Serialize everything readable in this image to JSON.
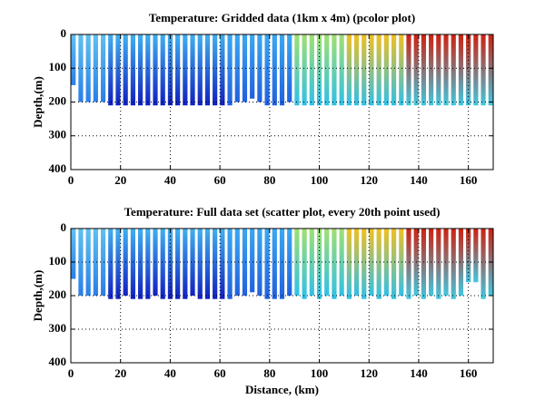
{
  "chart_data": [
    {
      "type": "profile",
      "title": "Temperature: Gridded data (1km x 4m) (pcolor plot)",
      "y_label": "Depth,(m)",
      "xlim": [
        0,
        170
      ],
      "ylim": [
        0,
        400
      ],
      "y_direction": "reverse",
      "grid": true,
      "xticks": [
        0,
        20,
        40,
        60,
        80,
        100,
        120,
        140,
        160
      ],
      "yticks": [
        0,
        100,
        200,
        300,
        400
      ],
      "series": [
        {
          "top_color": "#5ec0f0",
          "bottom_color": "#2a7fe8",
          "x": [
            1,
            4,
            7,
            10,
            13
          ],
          "depths": [
            150,
            200,
            200,
            200,
            200
          ]
        },
        {
          "top_color": "#40b0f0",
          "bottom_color": "#1020c0",
          "x": [
            16,
            19,
            22,
            25,
            28,
            31,
            34,
            37,
            40,
            43,
            46,
            49,
            52,
            55,
            58,
            61
          ],
          "depths": [
            210,
            210,
            210,
            210,
            210,
            210,
            210,
            210,
            210,
            210,
            210,
            210,
            210,
            210,
            210,
            210
          ]
        },
        {
          "top_color": "#3aa8f0",
          "bottom_color": "#2060e0",
          "x": [
            64,
            67,
            70,
            73,
            76,
            79,
            82,
            85,
            88
          ],
          "depths": [
            210,
            200,
            200,
            190,
            200,
            210,
            210,
            210,
            200
          ]
        },
        {
          "top_color": "#a0e070",
          "bottom_color": "#30c0e8",
          "x": [
            91,
            94,
            97,
            100,
            103,
            106,
            109
          ],
          "depths": [
            210,
            210,
            210,
            210,
            210,
            210,
            210
          ]
        },
        {
          "top_color": "#f0c020",
          "bottom_color": "#30c0e8",
          "x": [
            112,
            115,
            118,
            121,
            124,
            127,
            130,
            133
          ],
          "depths": [
            210,
            210,
            210,
            210,
            210,
            210,
            210,
            210
          ]
        },
        {
          "top_color": "#d02010",
          "bottom_color": "#40c8e0",
          "x": [
            136,
            139,
            142,
            145,
            148,
            151,
            154,
            157,
            160,
            163,
            166,
            169
          ],
          "depths": [
            210,
            210,
            210,
            210,
            210,
            210,
            210,
            210,
            210,
            210,
            210,
            210
          ]
        }
      ]
    },
    {
      "type": "profile",
      "title": "Temperature: Full data set (scatter plot, every 20th point used)",
      "y_label": "Depth,(m)",
      "x_label": "Distance, (km)",
      "xlim": [
        0,
        170
      ],
      "ylim": [
        0,
        400
      ],
      "y_direction": "reverse",
      "grid": true,
      "xticks": [
        0,
        20,
        40,
        60,
        80,
        100,
        120,
        140,
        160
      ],
      "yticks": [
        0,
        100,
        200,
        300,
        400
      ],
      "series": [
        {
          "top_color": "#5ec0f0",
          "bottom_color": "#2a7fe8",
          "x": [
            1,
            4,
            7,
            10,
            13
          ],
          "depths": [
            150,
            200,
            200,
            200,
            200
          ]
        },
        {
          "top_color": "#40b0f0",
          "bottom_color": "#1020c0",
          "x": [
            16,
            19,
            22,
            25,
            28,
            31,
            34,
            37,
            40,
            43,
            46,
            49,
            52,
            55,
            58,
            61
          ],
          "depths": [
            210,
            210,
            200,
            210,
            210,
            210,
            200,
            210,
            210,
            210,
            210,
            200,
            210,
            210,
            210,
            210
          ]
        },
        {
          "top_color": "#3aa8f0",
          "bottom_color": "#2060e0",
          "x": [
            64,
            67,
            70,
            73,
            76,
            79,
            82,
            85,
            88
          ],
          "depths": [
            210,
            200,
            200,
            190,
            200,
            210,
            210,
            210,
            200
          ]
        },
        {
          "top_color": "#a0e070",
          "bottom_color": "#30c0e8",
          "x": [
            91,
            94,
            97,
            100,
            103,
            106,
            109
          ],
          "depths": [
            200,
            210,
            200,
            210,
            200,
            210,
            200
          ]
        },
        {
          "top_color": "#f0c020",
          "bottom_color": "#30c0e8",
          "x": [
            112,
            115,
            118,
            121,
            124,
            127,
            130,
            133
          ],
          "depths": [
            210,
            200,
            210,
            200,
            210,
            200,
            210,
            200
          ]
        },
        {
          "top_color": "#d02010",
          "bottom_color": "#40c8e0",
          "x": [
            136,
            139,
            142,
            145,
            148,
            151,
            154,
            157,
            160,
            163,
            166,
            169
          ],
          "depths": [
            210,
            200,
            210,
            200,
            210,
            200,
            210,
            200,
            160,
            160,
            210,
            200
          ]
        }
      ]
    }
  ]
}
